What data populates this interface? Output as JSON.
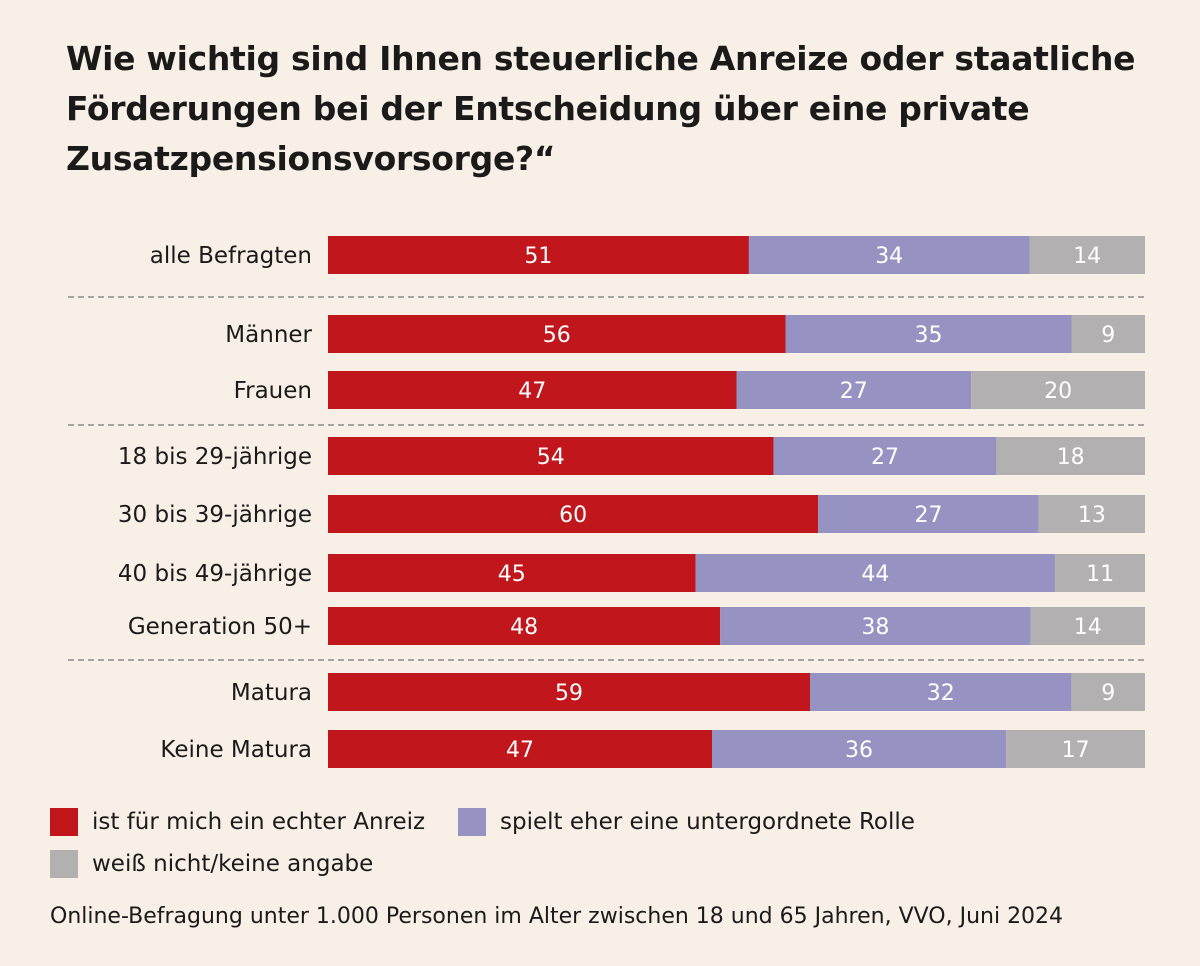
{
  "chart_data": {
    "type": "bar",
    "orientation": "horizontal",
    "stacked": true,
    "title": "Wie wichtig sind Ihnen steuerliche Anreize oder staatliche Förderungen bei der Entscheidung über eine private Zusatzpensionsvorsorge?“",
    "categories": [
      "alle Befragten",
      "Männer",
      "Frauen",
      "18 bis 29-jährige",
      "30 bis 39-jährige",
      "40 bis 49-jährige",
      "Generation 50+",
      "Matura",
      "Keine Matura"
    ],
    "groups": [
      [
        "alle Befragten"
      ],
      [
        "Männer",
        "Frauen"
      ],
      [
        "18 bis 29-jährige",
        "30 bis 39-jährige",
        "40 bis 49-jährige",
        "Generation 50+"
      ],
      [
        "Matura",
        "Keine Matura"
      ]
    ],
    "series": [
      {
        "name": "ist für mich ein echter Anreiz",
        "color": "#c1161b",
        "values": [
          51,
          56,
          47,
          54,
          60,
          45,
          48,
          59,
          47
        ]
      },
      {
        "name": "spielt eher eine untergordnete Rolle",
        "color": "#9692c2",
        "values": [
          34,
          35,
          27,
          27,
          27,
          44,
          38,
          32,
          36
        ]
      },
      {
        "name": "weiß nicht/keine angabe",
        "color": "#b2b0b1",
        "values": [
          14,
          9,
          20,
          18,
          13,
          11,
          14,
          9,
          17
        ]
      }
    ],
    "legend_position": "bottom-left",
    "grid": false,
    "data_labels": true
  },
  "source": "Online-Befragung unter 1.000 Personen im Alter zwischen 18 und 65 Jahren, VVO, Juni 2024"
}
